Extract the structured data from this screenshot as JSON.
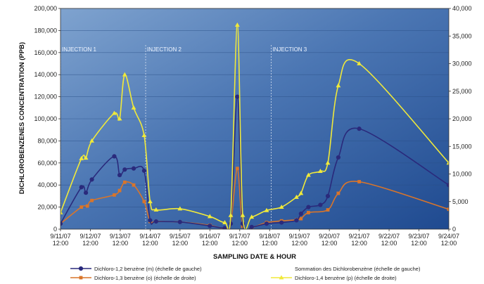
{
  "chart_data": {
    "type": "line",
    "xlabel": "SAMPLING DATE & HOUR",
    "ylabel": "DICHLOROBENZENES CONCENTRATION (PPB)",
    "x_ticks": [
      {
        "day": 0,
        "l1": "9/11/07",
        "l2": "12:00"
      },
      {
        "day": 1,
        "l1": "9/12/07",
        "l2": "12:00"
      },
      {
        "day": 2,
        "l1": "9/13/07",
        "l2": "12:00"
      },
      {
        "day": 3,
        "l1": "9/14/07",
        "l2": "12:00"
      },
      {
        "day": 4,
        "l1": "9/15/07",
        "l2": "12:00"
      },
      {
        "day": 5,
        "l1": "9/16/07",
        "l2": "12:00"
      },
      {
        "day": 6,
        "l1": "9/17/07",
        "l2": "12:00"
      },
      {
        "day": 7,
        "l1": "9/18/07",
        "l2": "12:00"
      },
      {
        "day": 8,
        "l1": "9/19/07",
        "l2": "12:00"
      },
      {
        "day": 9,
        "l1": "9/20/07",
        "l2": "12:00"
      },
      {
        "day": 10,
        "l1": "9/21/07",
        "l2": "12:00"
      },
      {
        "day": 11,
        "l1": "9/22/07",
        "l2": "12:00"
      },
      {
        "day": 12,
        "l1": "9/23/07",
        "l2": "12:00"
      },
      {
        "day": 13,
        "l1": "9/24/07",
        "l2": "12:00"
      }
    ],
    "xlim": [
      0,
      13
    ],
    "y_left": {
      "min": 0,
      "max": 200000,
      "step": 20000,
      "tick_labels": [
        "0",
        "20,000",
        "40,000",
        "60,000",
        "80,000",
        "100,000",
        "120,000",
        "140,000",
        "160,000",
        "180,000",
        "200,000"
      ]
    },
    "y_right": {
      "min": 0,
      "max": 40000,
      "step": 5000,
      "tick_labels": [
        "0",
        "5,000",
        "10,000",
        "15,000",
        "20,000",
        "25,000",
        "30,000",
        "35,000",
        "40,000"
      ]
    },
    "injections": [
      {
        "label": "INJECTION 1",
        "day": 0.0
      },
      {
        "label": "INJECTION 2",
        "day": 2.85
      },
      {
        "label": "INJECTION 3",
        "day": 7.05
      }
    ],
    "series": [
      {
        "name": "Dichloro-1,2 benzène (m) (échelle de gauche)",
        "axis": "left",
        "color": "#2a2a7c",
        "marker": "circle",
        "points": [
          [
            0.0,
            5000
          ],
          [
            0.7,
            38000
          ],
          [
            0.85,
            33000
          ],
          [
            1.05,
            45000
          ],
          [
            1.8,
            66000
          ],
          [
            1.98,
            49000
          ],
          [
            2.15,
            54000
          ],
          [
            2.45,
            55000
          ],
          [
            2.8,
            53000
          ],
          [
            3.0,
            8000
          ],
          [
            3.2,
            7000
          ],
          [
            4.0,
            6500
          ],
          [
            5.0,
            3000
          ],
          [
            5.5,
            1000
          ],
          [
            5.7,
            5000
          ],
          [
            5.92,
            120000
          ],
          [
            6.1,
            5000
          ],
          [
            6.4,
            2000
          ],
          [
            6.9,
            5000
          ],
          [
            7.4,
            6000
          ],
          [
            7.9,
            8000
          ],
          [
            8.05,
            14000
          ],
          [
            8.3,
            20000
          ],
          [
            8.7,
            22000
          ],
          [
            8.95,
            30000
          ],
          [
            9.3,
            65000
          ],
          [
            10.0,
            91000
          ],
          [
            13.0,
            40000
          ]
        ]
      },
      {
        "name": "Dichloro-1,3 benzène (o) (échelle de droite)",
        "axis": "right",
        "color": "#d9752a",
        "marker": "square",
        "points": [
          [
            0.0,
            1000
          ],
          [
            0.7,
            4000
          ],
          [
            0.9,
            4200
          ],
          [
            1.05,
            5200
          ],
          [
            1.8,
            6200
          ],
          [
            1.98,
            7000
          ],
          [
            2.15,
            8500
          ],
          [
            2.45,
            8000
          ],
          [
            2.8,
            5000
          ],
          [
            3.0,
            1400
          ],
          [
            3.2,
            1400
          ],
          [
            4.0,
            1300
          ],
          [
            5.0,
            700
          ],
          [
            5.5,
            100
          ],
          [
            5.7,
            1000
          ],
          [
            5.92,
            11000
          ],
          [
            6.1,
            500
          ],
          [
            6.4,
            300
          ],
          [
            6.9,
            1200
          ],
          [
            7.4,
            1500
          ],
          [
            7.9,
            1700
          ],
          [
            8.05,
            1900
          ],
          [
            8.3,
            3000
          ],
          [
            8.95,
            3500
          ],
          [
            9.3,
            6500
          ],
          [
            10.0,
            8600
          ],
          [
            13.0,
            3600
          ]
        ]
      },
      {
        "name": "Dichloro-1,4 benzène (p) (échelle de droite)",
        "axis": "right",
        "color": "#f0e93a",
        "marker": "triangle",
        "points": [
          [
            0.0,
            3000
          ],
          [
            0.7,
            12800
          ],
          [
            0.85,
            12900
          ],
          [
            1.05,
            16000
          ],
          [
            1.8,
            21000
          ],
          [
            1.98,
            20000
          ],
          [
            2.15,
            28000
          ],
          [
            2.45,
            22000
          ],
          [
            2.8,
            17000
          ],
          [
            3.0,
            5000
          ],
          [
            3.2,
            3500
          ],
          [
            4.0,
            3700
          ],
          [
            5.0,
            2300
          ],
          [
            5.5,
            1200
          ],
          [
            5.7,
            2500
          ],
          [
            5.92,
            37000
          ],
          [
            6.1,
            2500
          ],
          [
            6.4,
            2200
          ],
          [
            6.9,
            3400
          ],
          [
            7.4,
            4000
          ],
          [
            7.9,
            5800
          ],
          [
            8.05,
            6500
          ],
          [
            8.3,
            9800
          ],
          [
            8.7,
            10500
          ],
          [
            8.95,
            12000
          ],
          [
            9.3,
            26000
          ],
          [
            10.0,
            30000
          ],
          [
            13.0,
            12000
          ]
        ]
      }
    ],
    "legend": {
      "placement": "bottom",
      "entries": [
        {
          "label": "Dichloro-1,2 benzène (m) (échelle de gauche)",
          "color": "#2a2a7c",
          "marker": "circle"
        },
        {
          "label": "Sommation des Dichlorobenzène (échelle de gauche)",
          "color": "",
          "marker": "none"
        },
        {
          "label": "Dichloro-1,3 benzène (o) (échelle de droite)",
          "color": "#d9752a",
          "marker": "square"
        },
        {
          "label": "Dichloro-1,4 benzène (p) (échelle de droite)",
          "color": "#f0e93a",
          "marker": "triangle"
        }
      ]
    },
    "grid": true,
    "background": "gradient-blue"
  }
}
